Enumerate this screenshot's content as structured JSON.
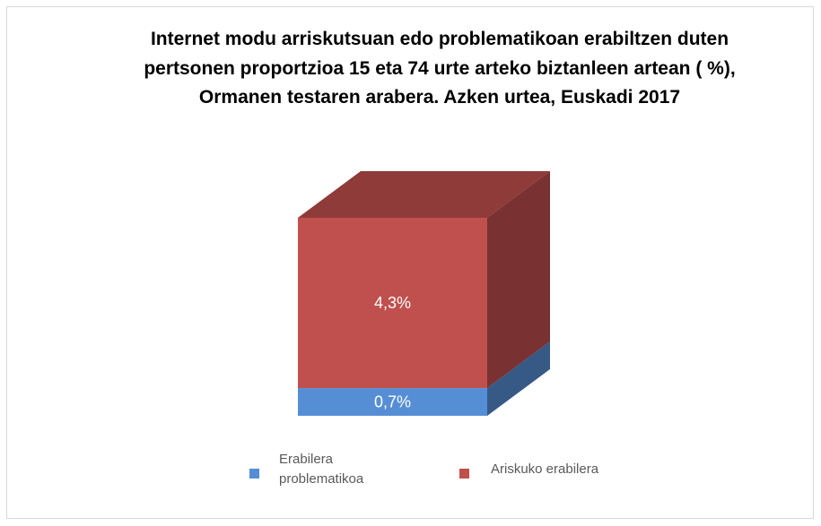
{
  "chart_data": {
    "type": "bar3d_stacked",
    "title": "Internet modu arriskutsuan edo problematikoan erabiltzen duten pertsonen proportzioa 15 eta 74 urte arteko biztanleen artean ( %), Ormanen testaren arabera. Azken urtea, Euskadi 2017",
    "categories": [
      null
    ],
    "series": [
      {
        "name": "Erabilera problematikoa",
        "color": "#558ed5",
        "values": [
          0.7
        ],
        "value_labels": [
          "0,7%"
        ]
      },
      {
        "name": "Ariskuko erabilera",
        "color": "#c0504d",
        "values": [
          4.3
        ],
        "value_labels": [
          "4,3%"
        ]
      }
    ],
    "legend": "bottom"
  }
}
